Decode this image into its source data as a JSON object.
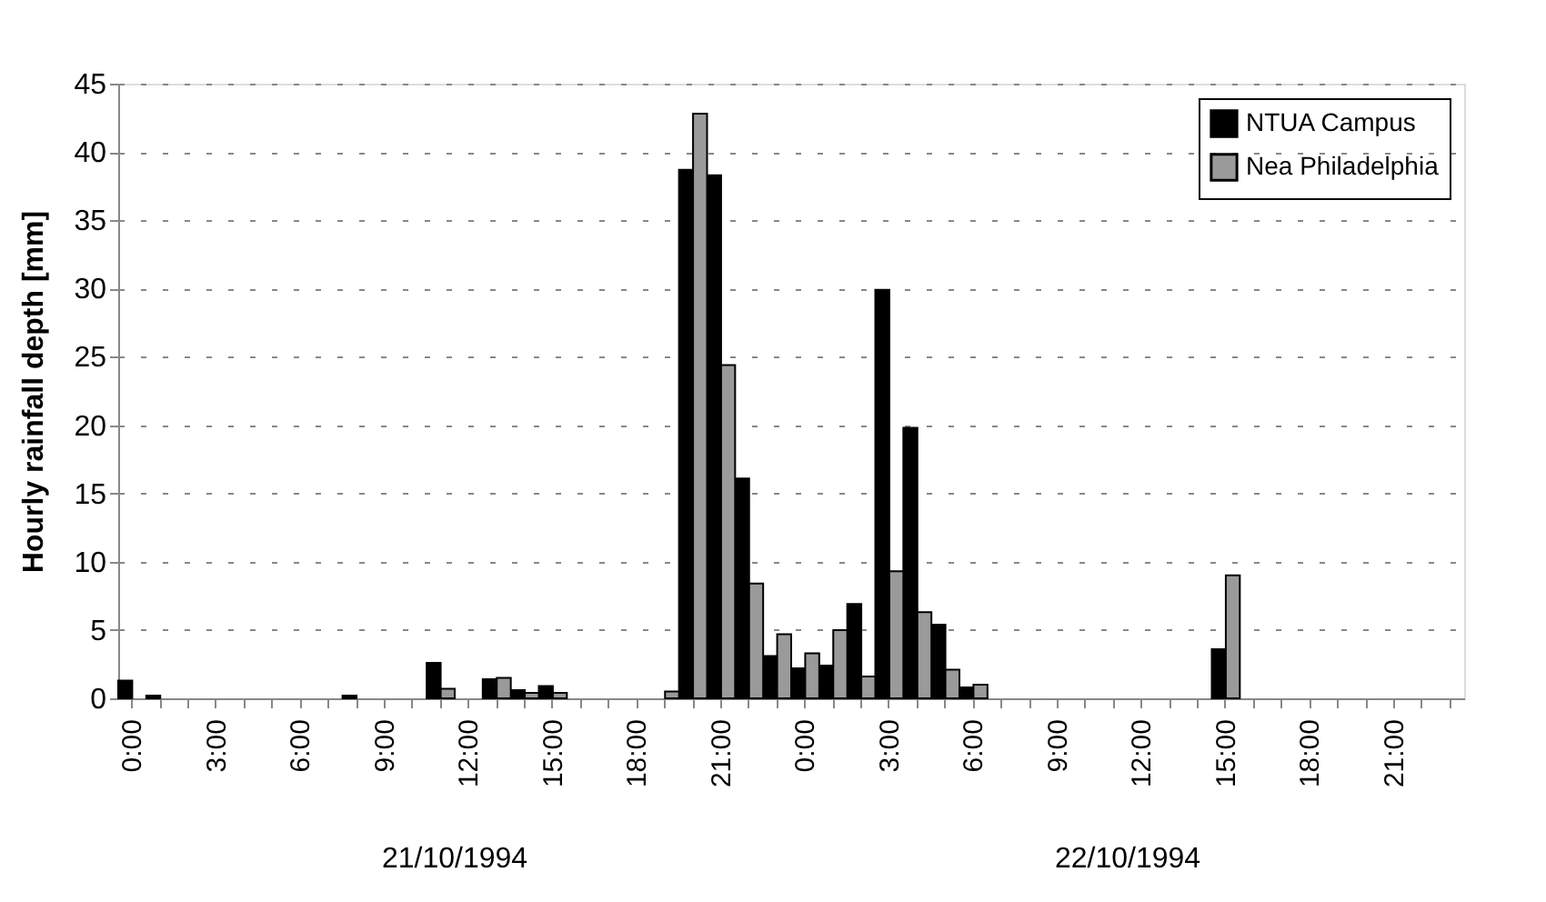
{
  "chart_data": {
    "type": "bar",
    "ylabel": "Hourly rainfall depth [mm]",
    "categories": [
      "0:00",
      null,
      null,
      "3:00",
      null,
      null,
      "6:00",
      null,
      null,
      "9:00",
      null,
      null,
      "12:00",
      null,
      null,
      "15:00",
      null,
      null,
      "18:00",
      null,
      null,
      "21:00",
      null,
      null,
      "0:00",
      null,
      null,
      "3:00",
      null,
      null,
      "6:00",
      null,
      null,
      "9:00",
      null,
      null,
      "12:00",
      null,
      null,
      "15:00",
      null,
      null,
      "18:00",
      null,
      null,
      "21:00",
      null,
      null
    ],
    "series": [
      {
        "name": "NTUA Campus",
        "color": "#000000",
        "values": [
          1.3,
          0.2,
          0,
          0,
          0,
          0,
          0,
          0,
          0.2,
          0,
          0,
          2.6,
          0,
          1.4,
          0.6,
          0.9,
          0,
          0,
          0,
          0,
          38.7,
          38.3,
          16.1,
          3.1,
          2.2,
          2.4,
          6.9,
          29.9,
          19.8,
          5.4,
          0.8,
          0,
          0,
          0,
          0,
          0,
          0,
          0,
          0,
          3.6,
          0,
          0,
          0,
          0,
          0,
          0,
          0,
          0
        ]
      },
      {
        "name": "Nea Philadelphia",
        "color": "#9a9a9a",
        "values": [
          0,
          0,
          0,
          0,
          0,
          0,
          0,
          0,
          0,
          0,
          0,
          0.7,
          0,
          1.5,
          0.4,
          0.4,
          0,
          0,
          0,
          0.5,
          42.8,
          24.4,
          8.4,
          4.7,
          3.3,
          5.0,
          1.6,
          9.3,
          6.3,
          2.1,
          1.0,
          0,
          0,
          0,
          0,
          0,
          0,
          0,
          0,
          9.0,
          0,
          0,
          0,
          0,
          0,
          0,
          0,
          0
        ]
      }
    ],
    "ylim": [
      0,
      45
    ],
    "yticks": [
      0,
      5,
      10,
      15,
      20,
      25,
      30,
      35,
      40,
      45
    ],
    "grid": "y",
    "legend": "top right",
    "annotations": [
      "21/10/1994",
      "22/10/1994"
    ]
  }
}
